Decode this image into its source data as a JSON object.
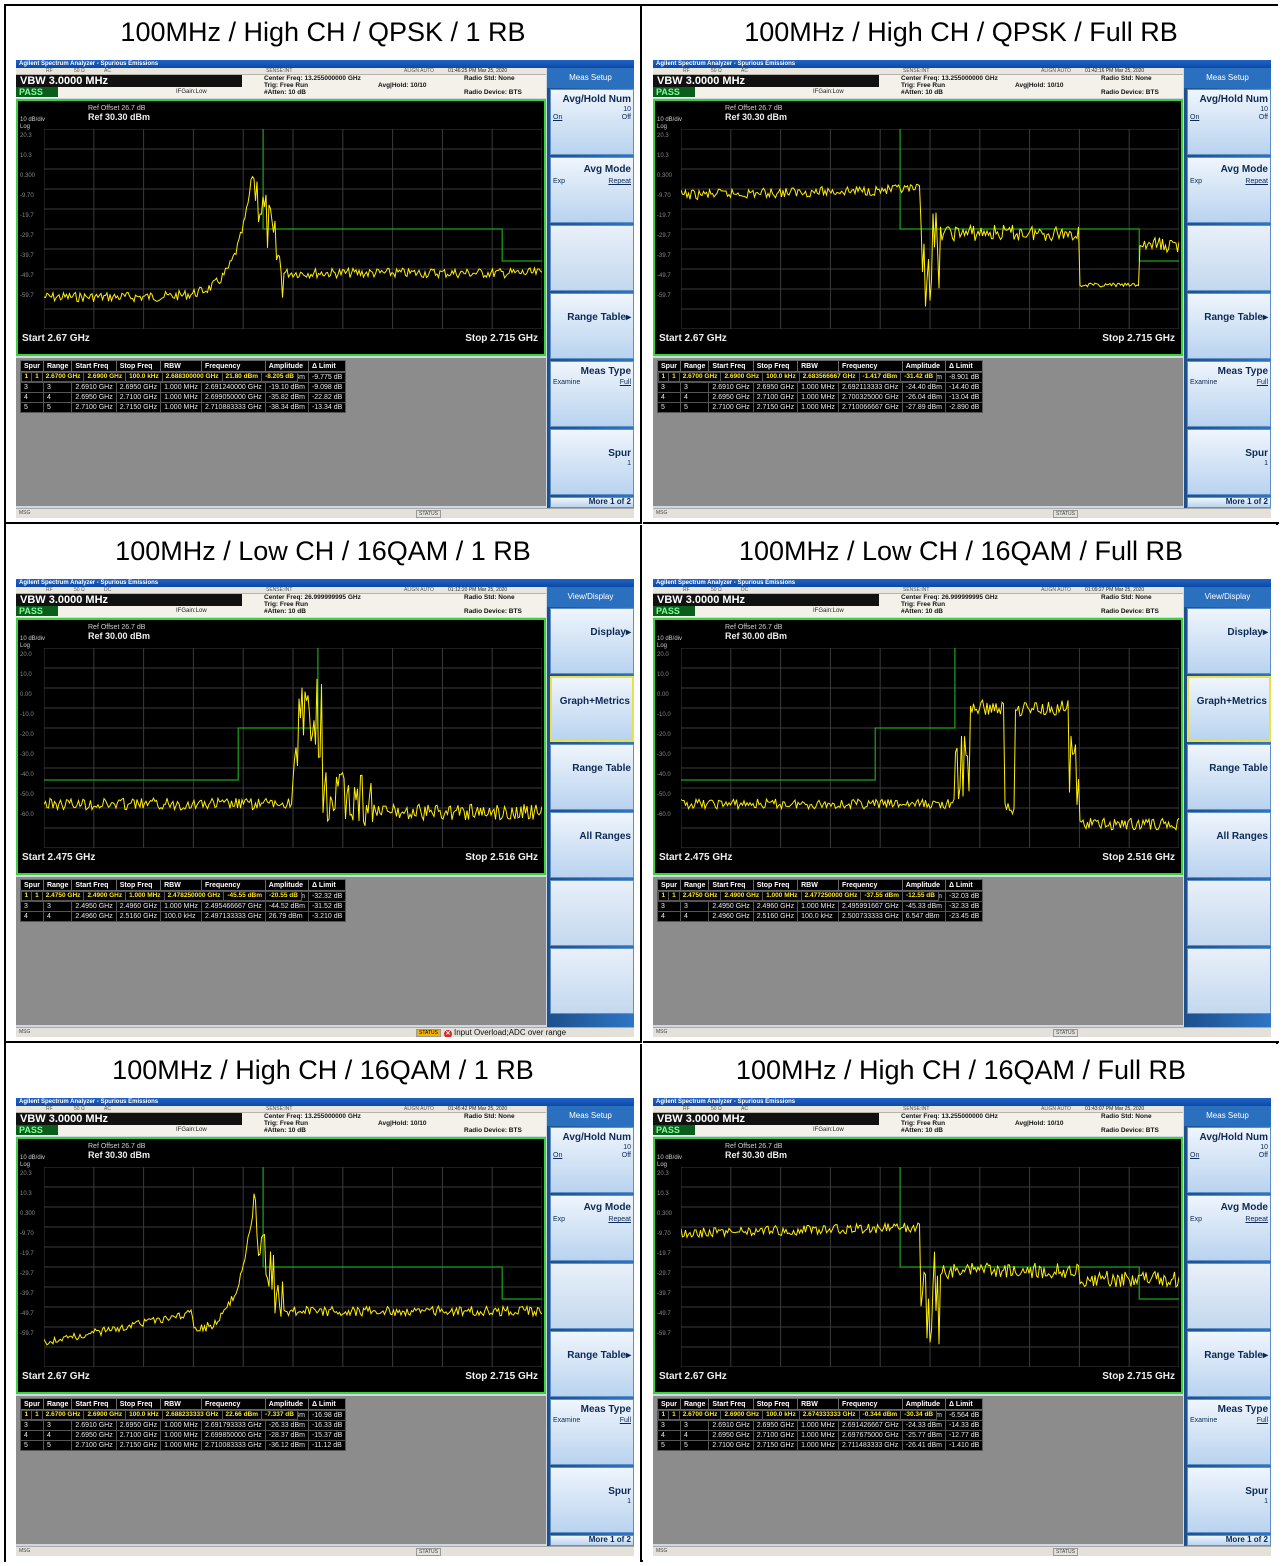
{
  "app_title": "Agilent Spectrum Analyzer - Spurious Emissions",
  "common": {
    "vbw": "VBW 3.0000 MHz",
    "pass": "PASS",
    "ifgain": "IFGain:Low",
    "atten": "#Atten: 10 dB",
    "trig": "Trig: Free Run",
    "avg_hold": "Avg|Hold: 10/10",
    "radio_std": "Radio Std: None",
    "radio_device": "Radio Device: BTS",
    "ref_offset": "Ref Offset 26.7 dB",
    "div": "10 dB/div",
    "log": "Log",
    "msg": "MSG",
    "status": "STATUS",
    "sb_rf": "RF",
    "sb_ohm": "50 Ω",
    "sb_sense": "SENSE:INT",
    "sb_align": "ALIGN AUTO",
    "sb_mode_ac": "AC",
    "sb_mode_dc": "DC",
    "table_headers": [
      "Spur",
      "Range",
      "Start Freq",
      "Stop Freq",
      "RBW",
      "Frequency",
      "Amplitude",
      "Δ Limit"
    ],
    "colors": {
      "trace": "#ffee00",
      "limit": "#1ba61b",
      "grid": "#3a3a3a",
      "menu": "#2e76c4"
    }
  },
  "panels": [
    {
      "title": "100MHz / High CH / QPSK / 1 RB",
      "timestamp": "01:46:25 PM Mar 25, 2020",
      "center_freq": "Center Freq: 13.255000000 GHz",
      "ref": "Ref 30.30 dBm",
      "start": "Start  2.67 GHz",
      "stop": "Stop 2.715 GHz",
      "yticks": [
        "20.3",
        "10.3",
        "0.300",
        "-9.70",
        "-19.7",
        "-29.7",
        "-39.7",
        "-49.7",
        "-59.7"
      ],
      "menu": "meas",
      "rows": [
        [
          "1",
          "1",
          "2.6700 GHz",
          "2.6900 GHz",
          "100.0 kHz",
          "2.688300000 GHz",
          "21.80 dBm",
          "-8.205 dB"
        ],
        [
          "2",
          "2",
          "2.6900 GHz",
          "2.6910 GHz",
          "1.000 MHz",
          "2.690020000 GHz",
          "-19.77 dBm",
          "-9.775 dB"
        ],
        [
          "3",
          "3",
          "2.6910 GHz",
          "2.6950 GHz",
          "1.000 MHz",
          "2.691240000 GHz",
          "-19.10 dBm",
          "-9.098 dB"
        ],
        [
          "4",
          "4",
          "2.6950 GHz",
          "2.7100 GHz",
          "1.000 MHz",
          "2.699050000 GHz",
          "-35.82 dBm",
          "-22.82 dB"
        ],
        [
          "5",
          "5",
          "2.7100 GHz",
          "2.7150 GHz",
          "1.000 MHz",
          "2.710883333 GHz",
          "-38.34 dBm",
          "-13.34 dB"
        ]
      ]
    },
    {
      "title": "100MHz / High CH / QPSK / Full RB",
      "timestamp": "01:42:16 PM Mar 25, 2020",
      "center_freq": "Center Freq: 13.255000000 GHz",
      "ref": "Ref 30.30 dBm",
      "start": "Start  2.67 GHz",
      "stop": "Stop 2.715 GHz",
      "yticks": [
        "20.3",
        "10.3",
        "0.300",
        "-9.70",
        "-19.7",
        "-29.7",
        "-39.7",
        "-49.7",
        "-59.7"
      ],
      "menu": "meas",
      "rows": [
        [
          "1",
          "1",
          "2.6700 GHz",
          "2.6900 GHz",
          "100.0 kHz",
          "2.683566667 GHz",
          "-1.417 dBm",
          "-31.42 dB"
        ],
        [
          "2",
          "2",
          "2.6900 GHz",
          "2.6910 GHz",
          "1.000 MHz",
          "2.690025000 GHz",
          "-18.90 dBm",
          "-8.901 dB"
        ],
        [
          "3",
          "3",
          "2.6910 GHz",
          "2.6950 GHz",
          "1.000 MHz",
          "2.692113333 GHz",
          "-24.40 dBm",
          "-14.40 dB"
        ],
        [
          "4",
          "4",
          "2.6950 GHz",
          "2.7100 GHz",
          "1.000 MHz",
          "2.700325000 GHz",
          "-26.04 dBm",
          "-13.04 dB"
        ],
        [
          "5",
          "5",
          "2.7100 GHz",
          "2.7150 GHz",
          "1.000 MHz",
          "2.710066667 GHz",
          "-27.89 dBm",
          "-2.890 dB"
        ]
      ]
    },
    {
      "title": "100MHz / Low CH / 16QAM / 1 RB",
      "timestamp": "01:12:20 PM Mar 25, 2020",
      "center_freq": "Center Freq: 26.999999995 GHz",
      "ref": "Ref 30.00 dBm",
      "start": "Start  2.475 GHz",
      "stop": "Stop 2.516 GHz",
      "yticks": [
        "20.0",
        "10.0",
        "0.00",
        "-10.0",
        "-20.0",
        "-30.0",
        "-40.0",
        "-50.0",
        "-60.0"
      ],
      "menu": "view",
      "status_alert": "Input Overload;ADC over range",
      "rows": [
        [
          "1",
          "1",
          "2.4750 GHz",
          "2.4900 GHz",
          "1.000 MHz",
          "2.478250000 GHz",
          "-45.55 dBm",
          "-20.55 dB"
        ],
        [
          "2",
          "2",
          "2.4900 GHz",
          "2.4950 GHz",
          "1.000 MHz",
          "2.490950000 GHz",
          "-45.32 dBm",
          "-32.32 dB"
        ],
        [
          "3",
          "3",
          "2.4950 GHz",
          "2.4960 GHz",
          "1.000 MHz",
          "2.495466667 GHz",
          "-44.52 dBm",
          "-31.52 dB"
        ],
        [
          "4",
          "4",
          "2.4960 GHz",
          "2.5160 GHz",
          "100.0 kHz",
          "2.497133333 GHz",
          "26.79 dBm",
          "-3.210 dB"
        ]
      ]
    },
    {
      "title": "100MHz / Low CH / 16QAM / Full RB",
      "timestamp": "01:09:27 PM Mar 25, 2020",
      "center_freq": "Center Freq: 26.999999995 GHz",
      "ref": "Ref 30.00 dBm",
      "start": "Start  2.475 GHz",
      "stop": "Stop 2.516 GHz",
      "yticks": [
        "20.0",
        "10.0",
        "0.00",
        "-10.0",
        "-20.0",
        "-30.0",
        "-40.0",
        "-50.0",
        "-60.0"
      ],
      "menu": "view",
      "rows": [
        [
          "1",
          "1",
          "2.4750 GHz",
          "2.4900 GHz",
          "1.000 MHz",
          "2.477250000 GHz",
          "-37.55 dBm",
          "-12.55 dB"
        ],
        [
          "2",
          "2",
          "2.4900 GHz",
          "2.4950 GHz",
          "1.000 MHz",
          "2.491433333 GHz",
          "-45.03 dBm",
          "-32.03 dB"
        ],
        [
          "3",
          "3",
          "2.4950 GHz",
          "2.4960 GHz",
          "1.000 MHz",
          "2.495991667 GHz",
          "-45.33 dBm",
          "-32.33 dB"
        ],
        [
          "4",
          "4",
          "2.4960 GHz",
          "2.5160 GHz",
          "100.0 kHz",
          "2.500733333 GHz",
          "6.547 dBm",
          "-23.45 dB"
        ]
      ]
    },
    {
      "title": "100MHz / High CH / 16QAM / 1 RB",
      "timestamp": "01:45:42 PM Mar 25, 2020",
      "center_freq": "Center Freq: 13.255000000 GHz",
      "ref": "Ref 30.30 dBm",
      "start": "Start  2.67 GHz",
      "stop": "Stop 2.715 GHz",
      "yticks": [
        "20.3",
        "10.3",
        "0.300",
        "-9.70",
        "-19.7",
        "-29.7",
        "-39.7",
        "-49.7",
        "-59.7"
      ],
      "menu": "meas",
      "rows": [
        [
          "1",
          "1",
          "2.6700 GHz",
          "2.6900 GHz",
          "100.0 kHz",
          "2.688233333 GHz",
          "22.66 dBm",
          "-7.337 dB"
        ],
        [
          "2",
          "2",
          "2.6900 GHz",
          "2.6910 GHz",
          "1.000 MHz",
          "2.690065000 GHz",
          "-26.98 dBm",
          "-16.98 dB"
        ],
        [
          "3",
          "3",
          "2.6910 GHz",
          "2.6950 GHz",
          "1.000 MHz",
          "2.691793333 GHz",
          "-26.33 dBm",
          "-16.33 dB"
        ],
        [
          "4",
          "4",
          "2.6950 GHz",
          "2.7100 GHz",
          "1.000 MHz",
          "2.699850000 GHz",
          "-28.37 dBm",
          "-15.37 dB"
        ],
        [
          "5",
          "5",
          "2.7100 GHz",
          "2.7150 GHz",
          "1.000 MHz",
          "2.710083333 GHz",
          "-36.12 dBm",
          "-11.12 dB"
        ]
      ]
    },
    {
      "title": "100MHz / High CH / 16QAM / Full RB",
      "timestamp": "01:43:07 PM Mar 25, 2020",
      "center_freq": "Center Freq: 13.255000000 GHz",
      "ref": "Ref 30.30 dBm",
      "start": "Start  2.67 GHz",
      "stop": "Stop 2.715 GHz",
      "yticks": [
        "20.3",
        "10.3",
        "0.300",
        "-9.70",
        "-19.7",
        "-29.7",
        "-39.7",
        "-49.7",
        "-59.7"
      ],
      "menu": "meas",
      "rows": [
        [
          "1",
          "1",
          "2.6700 GHz",
          "2.6900 GHz",
          "100.0 kHz",
          "2.674333333 GHz",
          "-0.344 dBm",
          "-30.34 dB"
        ],
        [
          "2",
          "2",
          "2.6900 GHz",
          "2.6910 GHz",
          "1.000 MHz",
          "2.690050000 GHz",
          "-16.56 dBm",
          "-6.564 dB"
        ],
        [
          "3",
          "3",
          "2.6910 GHz",
          "2.6950 GHz",
          "1.000 MHz",
          "2.691426667 GHz",
          "-24.33 dBm",
          "-14.33 dB"
        ],
        [
          "4",
          "4",
          "2.6950 GHz",
          "2.7100 GHz",
          "1.000 MHz",
          "2.697675000 GHz",
          "-25.77 dBm",
          "-12.77 dB"
        ],
        [
          "5",
          "5",
          "2.7100 GHz",
          "2.7150 GHz",
          "1.000 MHz",
          "2.711483333 GHz",
          "-26.41 dBm",
          "-1.410 dB"
        ]
      ]
    }
  ],
  "menus": {
    "meas": {
      "title": "Meas Setup",
      "avg_hold": "Avg/Hold Num",
      "avg_val": "10",
      "on": "On",
      "off": "Off",
      "avg_mode": "Avg Mode",
      "exp": "Exp",
      "repeat": "Repeat",
      "range_table": "Range Table▸",
      "meas_type": "Meas Type",
      "examine": "Examine",
      "full": "Full",
      "spur": "Spur",
      "spur_val": "1",
      "more": "More",
      "more_val": "1 of 2"
    },
    "view": {
      "title": "View/Display",
      "display": "Display▸",
      "graph_metrics": "Graph+Metrics",
      "range_table": "Range Table",
      "all_ranges": "All Ranges"
    }
  }
}
